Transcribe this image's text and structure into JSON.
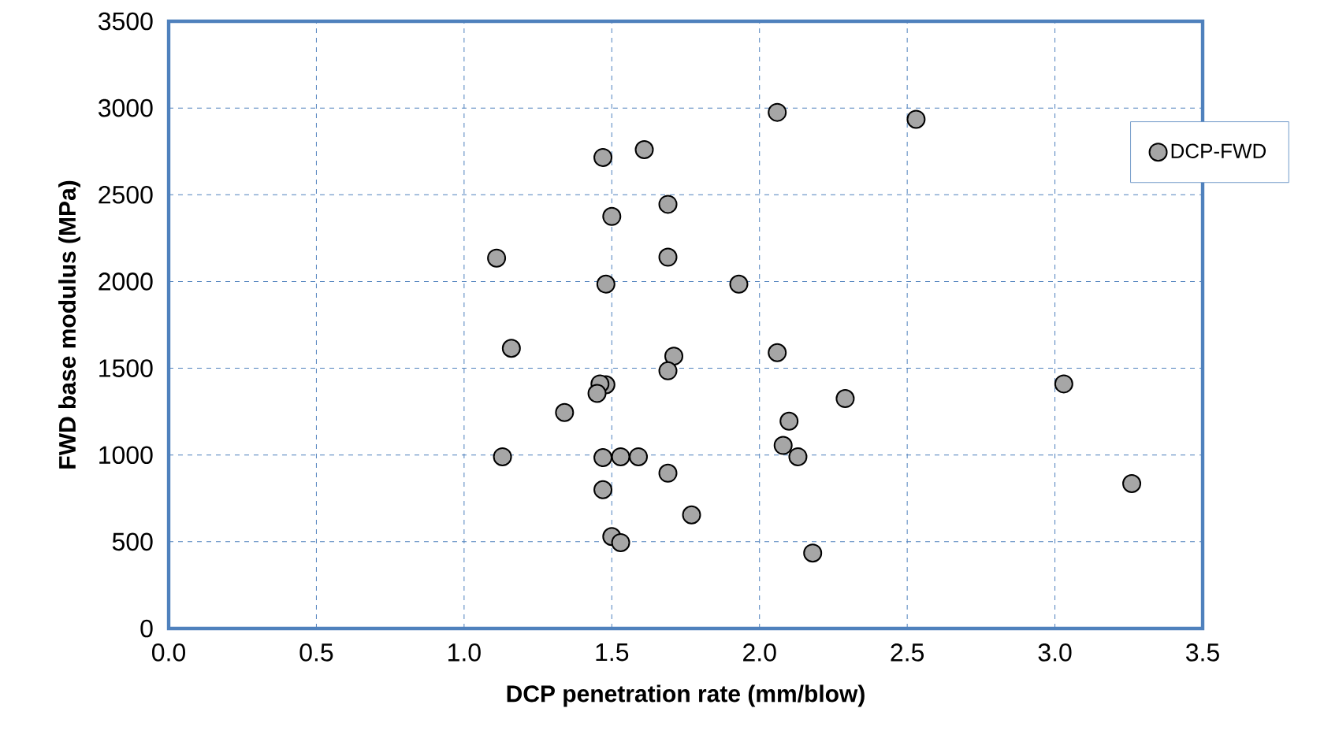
{
  "chart_data": {
    "type": "scatter",
    "xlabel": "DCP penetration rate (mm/blow)",
    "ylabel": "FWD base modulus (MPa)",
    "xlim": [
      0,
      3.5
    ],
    "ylim": [
      0,
      3500
    ],
    "xticks": [
      {
        "value": 0,
        "label": "0.0"
      },
      {
        "value": 0.5,
        "label": "0.5"
      },
      {
        "value": 1,
        "label": "1.0"
      },
      {
        "value": 1.5,
        "label": "1.5"
      },
      {
        "value": 2,
        "label": "2.0"
      },
      {
        "value": 2.5,
        "label": "2.5"
      },
      {
        "value": 3,
        "label": "3.0"
      },
      {
        "value": 3.5,
        "label": "3.5"
      }
    ],
    "yticks": [
      0,
      500,
      1000,
      1500,
      2000,
      2500,
      3000,
      3500
    ],
    "grid": true,
    "legend": "top right",
    "marker": "circle",
    "series": [
      {
        "name": "DCP-FWD",
        "color": "#a6a6a6",
        "x": [
          2.06,
          2.53,
          1.47,
          1.61,
          1.69,
          1.5,
          1.11,
          1.69,
          1.48,
          1.93,
          1.16,
          2.06,
          1.71,
          1.69,
          1.48,
          1.46,
          1.45,
          3.03,
          2.29,
          1.34,
          2.1,
          2.08,
          2.13,
          1.13,
          1.47,
          1.53,
          1.59,
          1.69,
          1.47,
          3.26,
          1.77,
          1.5,
          1.53,
          2.18
        ],
        "values": [
          2975,
          2935,
          2715,
          2760,
          2445,
          2375,
          2135,
          2140,
          1985,
          1985,
          1615,
          1590,
          1570,
          1485,
          1405,
          1410,
          1355,
          1410,
          1325,
          1245,
          1195,
          1055,
          990,
          990,
          985,
          990,
          990,
          895,
          800,
          835,
          655,
          530,
          495,
          435
        ]
      }
    ]
  }
}
